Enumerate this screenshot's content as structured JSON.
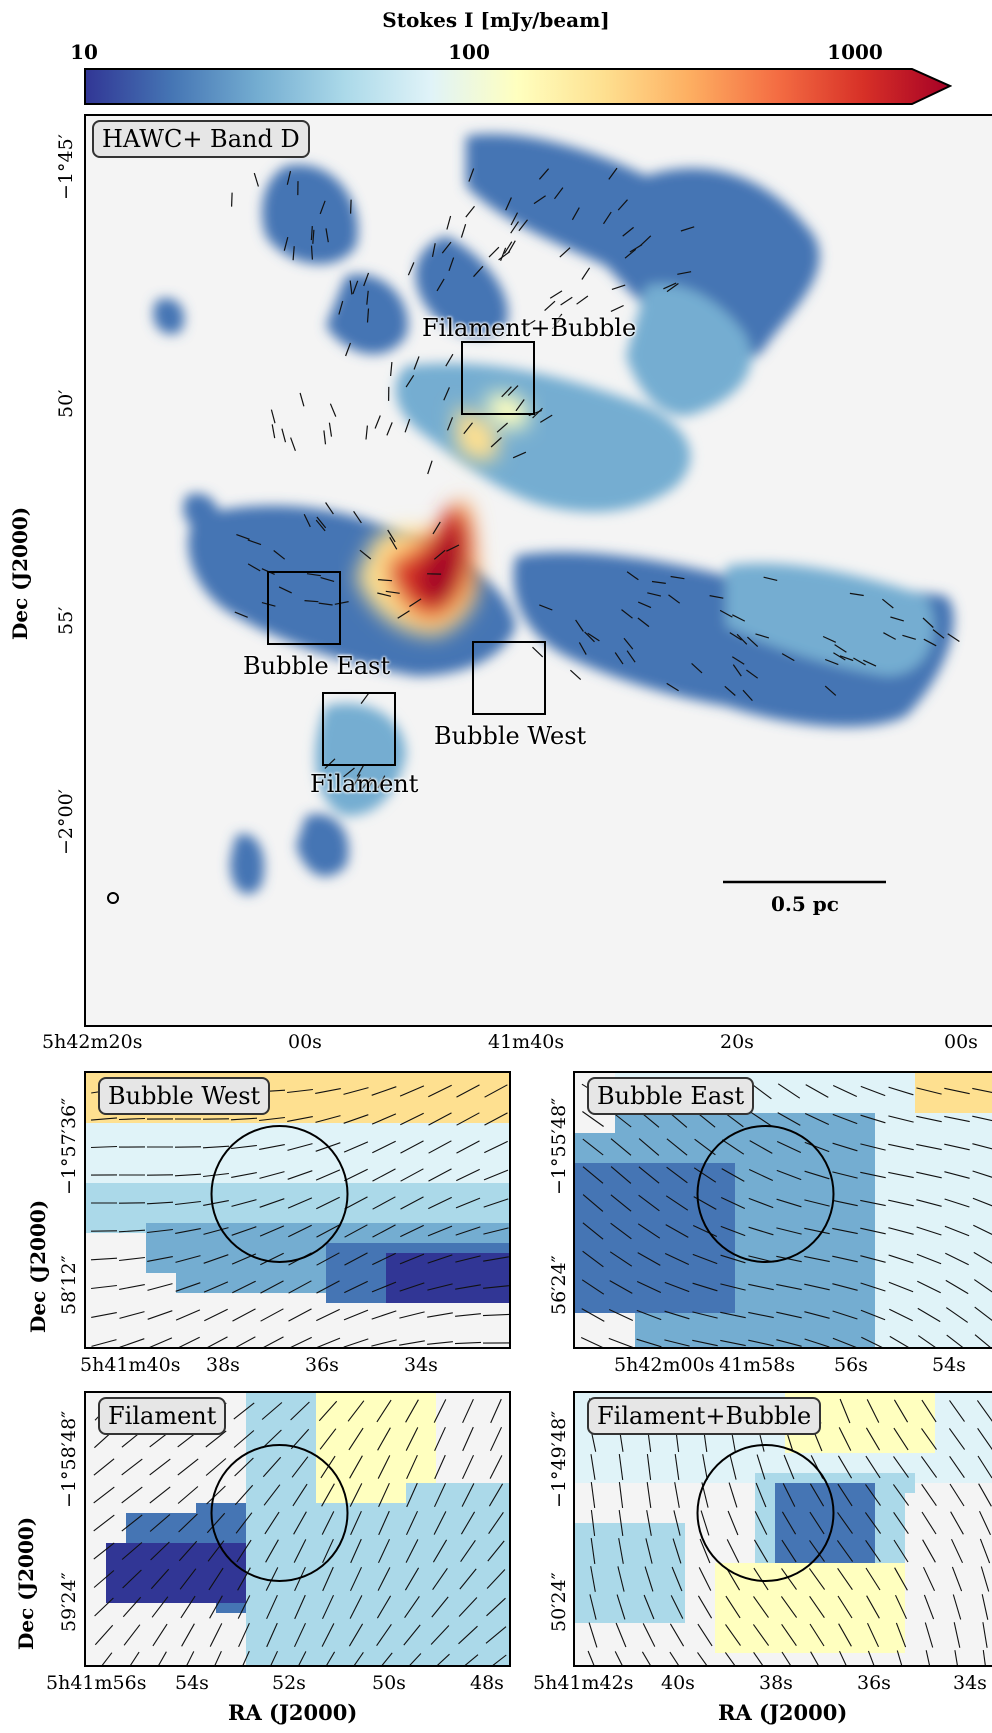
{
  "colorbar": {
    "title": "Stokes I [mJy/beam]",
    "ticks": [
      "10",
      "100",
      "1000"
    ],
    "colors": [
      "#313695",
      "#4575b4",
      "#74add1",
      "#abd9e9",
      "#e0f3f8",
      "#ffffbf",
      "#fee090",
      "#fdae61",
      "#f46d43",
      "#d73027",
      "#a50026"
    ]
  },
  "main_panel": {
    "label": "HAWC+ Band D",
    "y_ticks": [
      "−1°45′",
      "50′",
      "55′",
      "−2°00′"
    ],
    "x_ticks": [
      "5h42m20s",
      "00s",
      "41m40s",
      "20s",
      "00s"
    ],
    "y_axis_title": "Dec (J2000)",
    "regions": [
      "Filament+Bubble",
      "Bubble East",
      "Bubble West",
      "Filament"
    ],
    "scalebar": "0.5 pc"
  },
  "zoom_panels": [
    {
      "label": "Bubble West",
      "y_ticks": [
        "−1°57′36″",
        "58′12″"
      ],
      "x_ticks": [
        "5h41m40s",
        "38s",
        "36s",
        "34s"
      ],
      "y_axis_title": "Dec (J2000)"
    },
    {
      "label": "Bubble East",
      "y_ticks": [
        "−1°55′48″",
        "56′24″"
      ],
      "x_ticks": [
        "5h42m00s",
        "41m58s",
        "56s",
        "54s"
      ]
    },
    {
      "label": "Filament",
      "y_ticks": [
        "−1°58′48″",
        "59′24″"
      ],
      "x_ticks": [
        "5h41m56s",
        "54s",
        "52s",
        "50s",
        "48s"
      ],
      "y_axis_title": "Dec (J2000)",
      "x_axis_title": "RA (J2000)"
    },
    {
      "label": "Filament+Bubble",
      "y_ticks": [
        "−1°49′48″",
        "50′24″"
      ],
      "x_ticks": [
        "5h41m42s",
        "40s",
        "38s",
        "36s",
        "34s"
      ],
      "x_axis_title": "RA (J2000)"
    }
  ]
}
